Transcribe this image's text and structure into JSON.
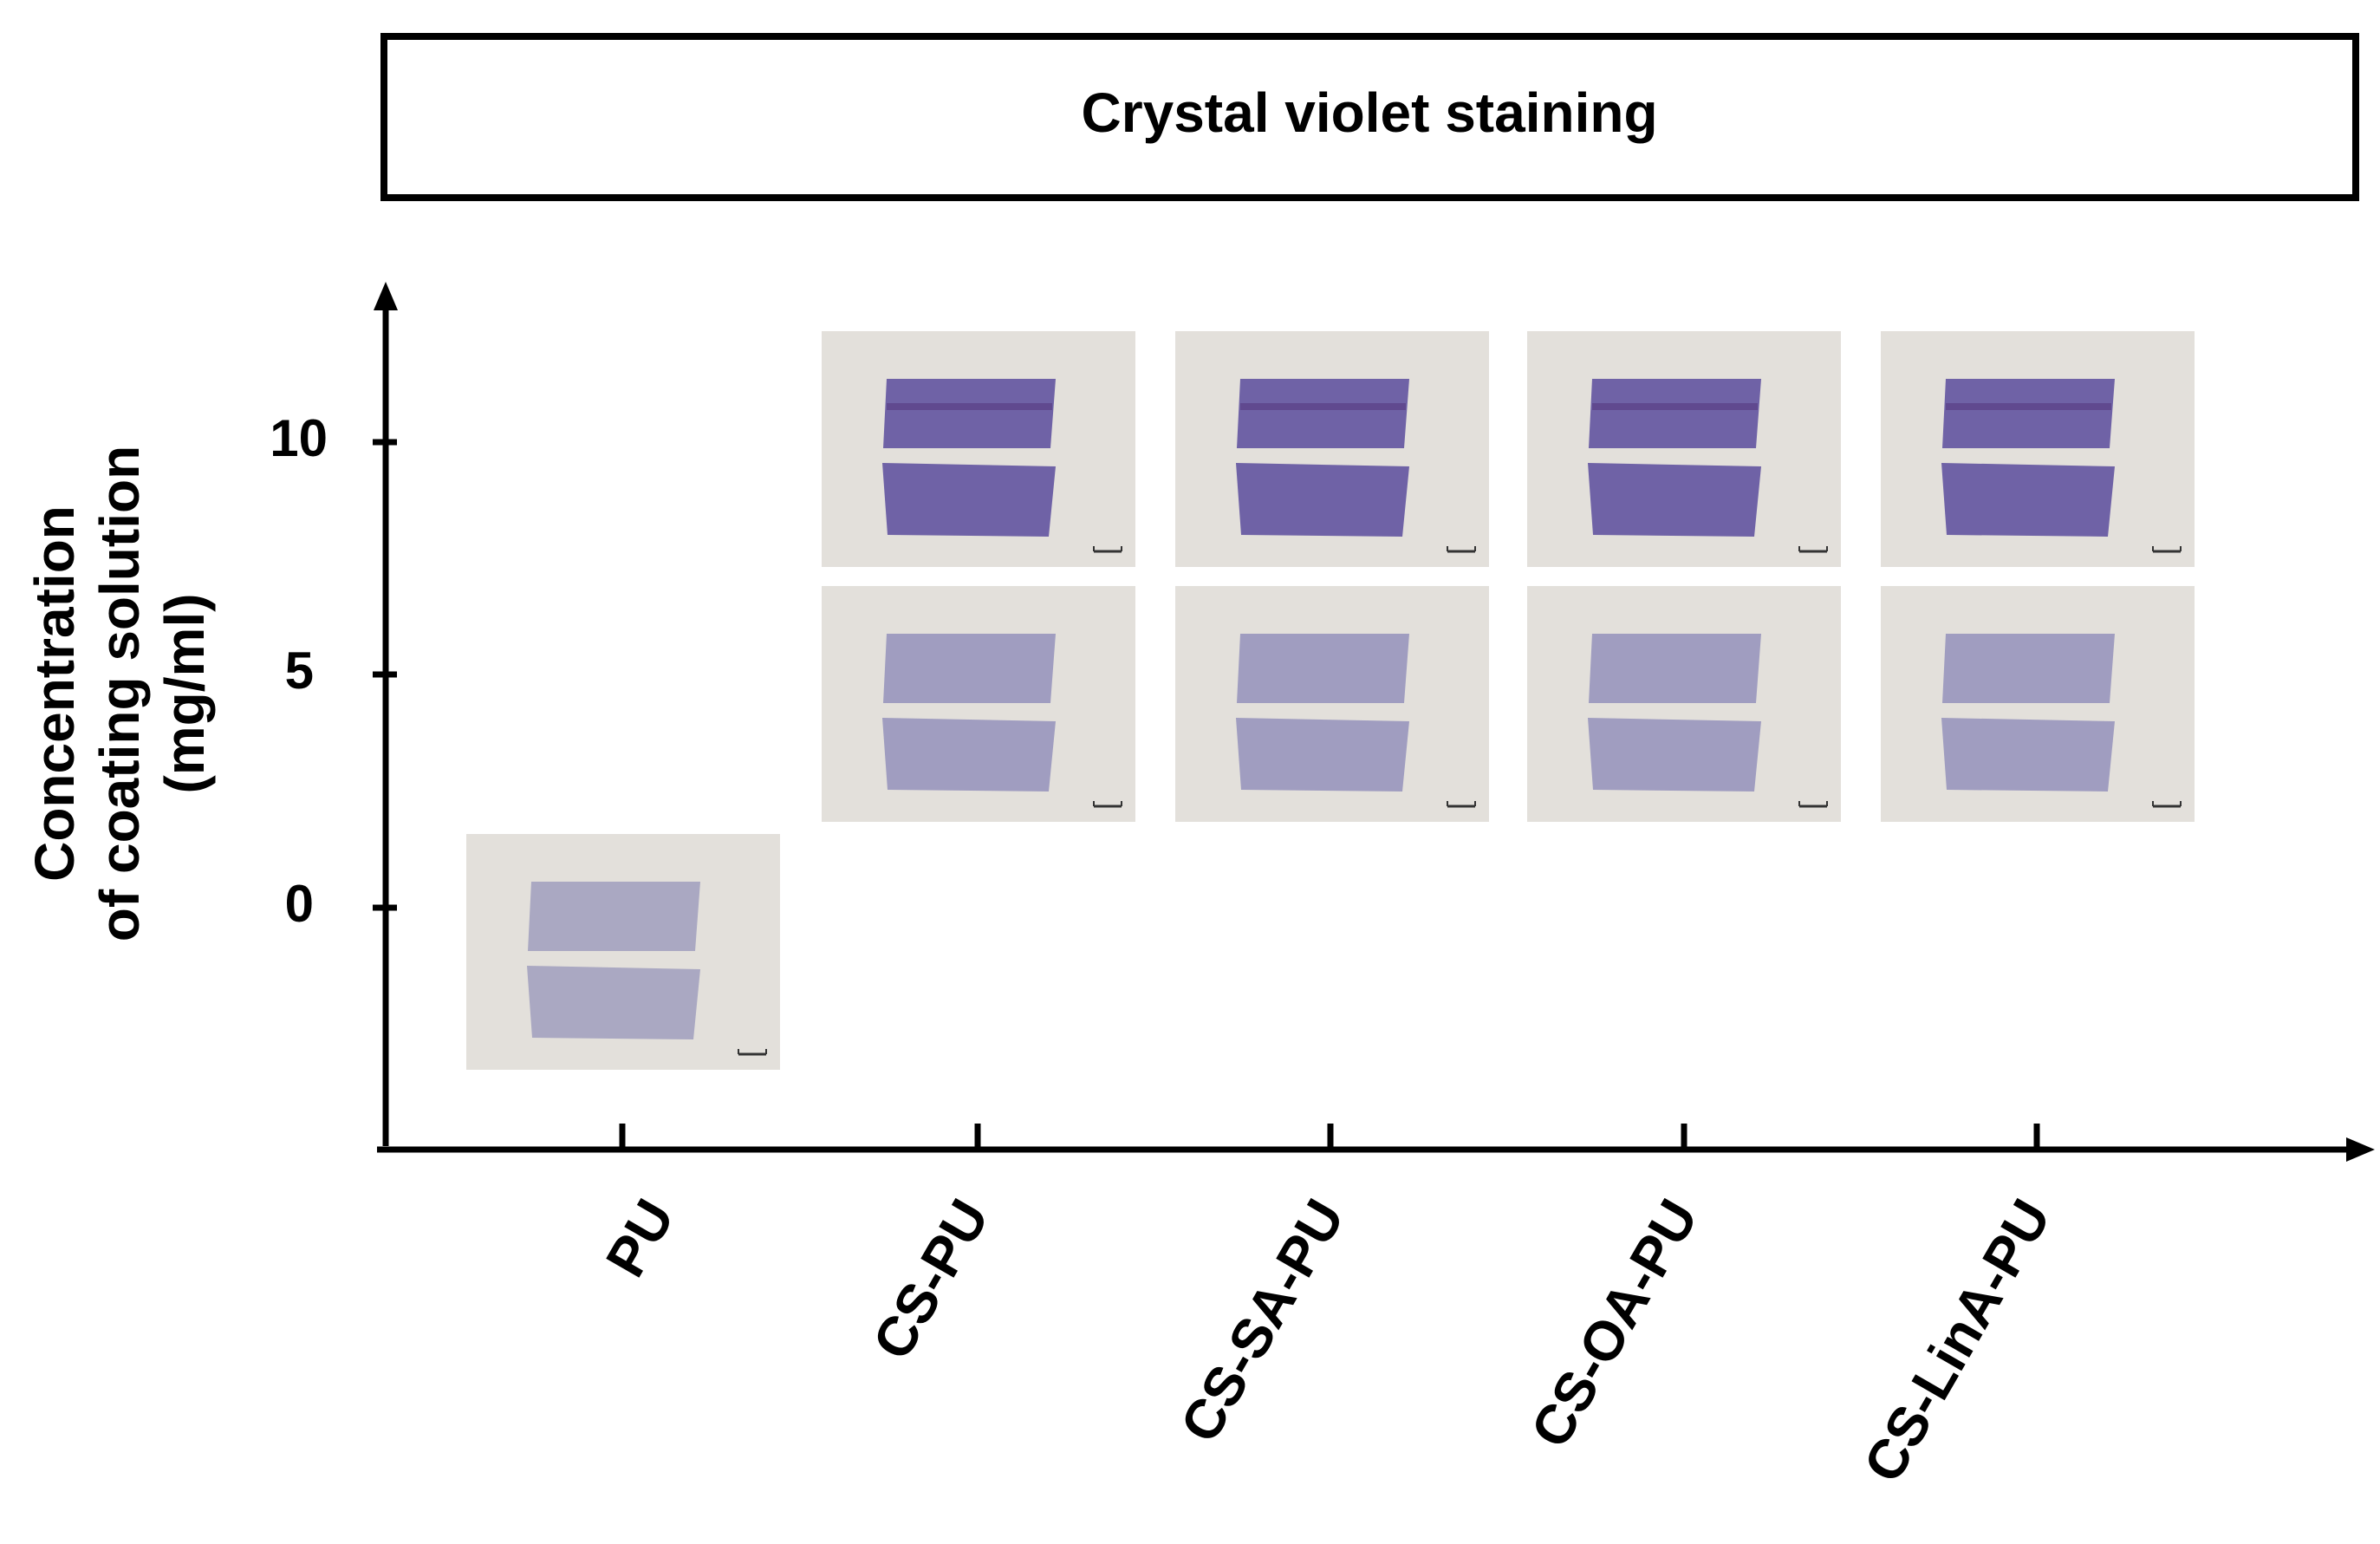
{
  "title": "Crystal violet staining",
  "y_axis": {
    "label_lines": [
      "Concentration",
      "of coating solution",
      "(mg/ml)"
    ],
    "ticks": [
      {
        "value": 10,
        "label": "10"
      },
      {
        "value": 5,
        "label": "5"
      },
      {
        "value": 0,
        "label": "0"
      }
    ]
  },
  "x_axis": {
    "categories": [
      "PU",
      "CS-PU",
      "CS-SA-PU",
      "CS-OA-PU",
      "CS-LinA-PU"
    ]
  },
  "panels": [
    {
      "category": "PU",
      "concentration": 0,
      "stain": "none"
    },
    {
      "category": "CS-PU",
      "concentration": 5,
      "stain": "light"
    },
    {
      "category": "CS-PU",
      "concentration": 10,
      "stain": "dark"
    },
    {
      "category": "CS-SA-PU",
      "concentration": 5,
      "stain": "light"
    },
    {
      "category": "CS-SA-PU",
      "concentration": 10,
      "stain": "dark"
    },
    {
      "category": "CS-OA-PU",
      "concentration": 5,
      "stain": "light"
    },
    {
      "category": "CS-OA-PU",
      "concentration": 10,
      "stain": "dark"
    },
    {
      "category": "CS-LinA-PU",
      "concentration": 5,
      "stain": "light"
    },
    {
      "category": "CS-LinA-PU",
      "concentration": 10,
      "stain": "dark"
    }
  ],
  "colors": {
    "background": "#ffffff",
    "axis": "#000000",
    "photo_background": "#e3e0db",
    "stain_none": "#aaa8c2",
    "stain_light": "#a09dc0",
    "stain_dark": "#6f62a6",
    "stain_band": "#5a3f86"
  }
}
